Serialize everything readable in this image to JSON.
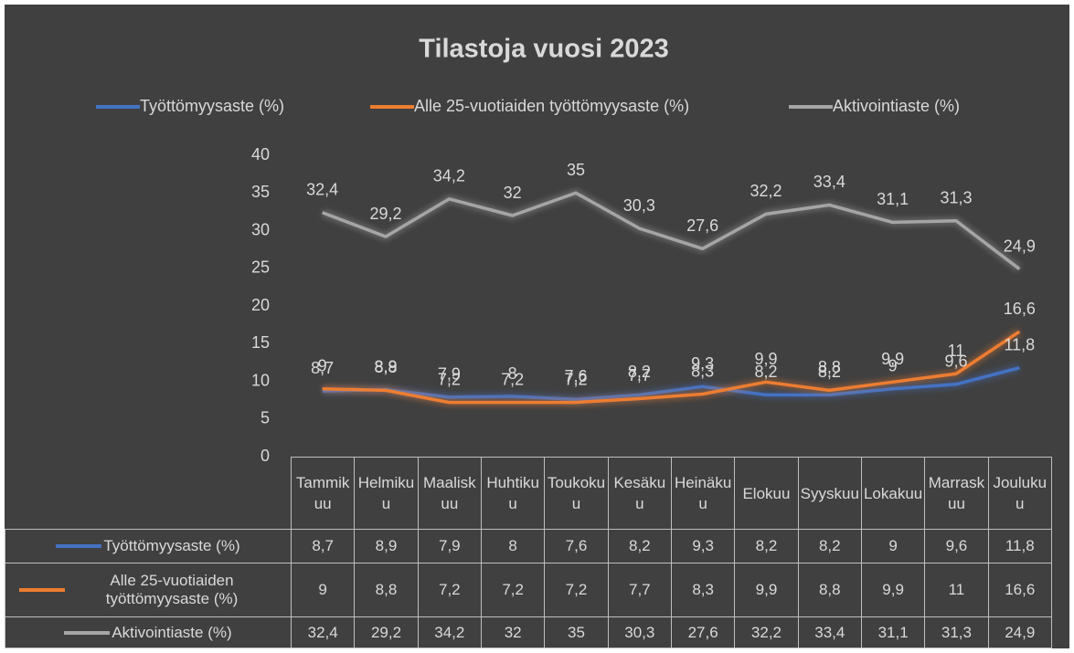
{
  "chart_data": {
    "type": "line",
    "title": "Tilastoja vuosi 2023",
    "categories": [
      "Tammikuu",
      "Helmikuu",
      "Maaliskuu",
      "Huhtikuu",
      "Toukokuu",
      "Kesäkuu",
      "Heinäkuu",
      "Elokuu",
      "Syyskuu",
      "Lokakuu",
      "Marraskuu",
      "Joulukuu"
    ],
    "series": [
      {
        "name": "Työttömyysaste (%)",
        "color": "#4472c4",
        "values": [
          8.7,
          8.9,
          7.9,
          8,
          7.6,
          8.2,
          9.3,
          8.2,
          8.2,
          9,
          9.6,
          11.8
        ],
        "value_labels": [
          "8,7",
          "8,9",
          "7,9",
          "8",
          "7,6",
          "8,2",
          "9,3",
          "8,2",
          "8,2",
          "9",
          "9,6",
          "11,8"
        ]
      },
      {
        "name": "Alle 25-vuotiaiden työttömyysaste (%)",
        "color": "#ed7d31",
        "values": [
          9,
          8.8,
          7.2,
          7.2,
          7.2,
          7.7,
          8.3,
          9.9,
          8.8,
          9.9,
          11,
          16.6
        ],
        "value_labels": [
          "9",
          "8,8",
          "7,2",
          "7,2",
          "7,2",
          "7,7",
          "8,3",
          "9,9",
          "8,8",
          "9,9",
          "11",
          "16,6"
        ]
      },
      {
        "name": "Aktivointiaste (%)",
        "color": "#a5a5a5",
        "values": [
          32.4,
          29.2,
          34.2,
          32,
          35,
          30.3,
          27.6,
          32.2,
          33.4,
          31.1,
          31.3,
          24.9
        ],
        "value_labels": [
          "32,4",
          "29,2",
          "34,2",
          "32",
          "35",
          "30,3",
          "27,6",
          "32,2",
          "33,4",
          "31,1",
          "31,3",
          "24,9"
        ]
      }
    ],
    "ylim": [
      0,
      40
    ],
    "yticks": [
      0,
      5,
      10,
      15,
      20,
      25,
      30,
      35,
      40
    ],
    "legend": "top",
    "data_table": true
  }
}
